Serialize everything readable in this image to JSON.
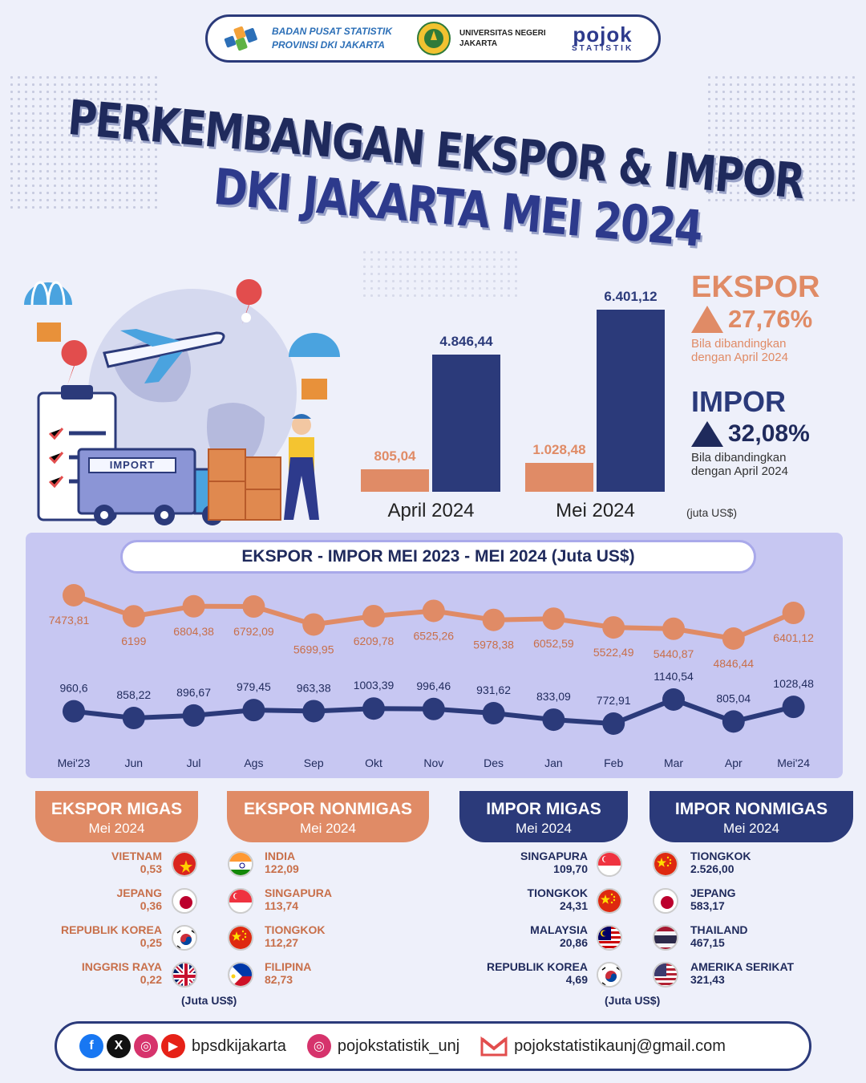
{
  "header": {
    "bps_line1": "BADAN PUSAT STATISTIK",
    "bps_line2": "PROVINSI DKI JAKARTA",
    "unj_line1": "UNIVERSITAS NEGERI",
    "unj_line2": "JAKARTA",
    "pojok_word": "pojok",
    "pojok_sub": "STATISTIK"
  },
  "title": {
    "line1": "PERKEMBANGAN EKSPOR & IMPOR",
    "line2": "DKI JAKARTA MEI 2024"
  },
  "illustration": {
    "truck_label": "IMPORT"
  },
  "colors": {
    "ekspor": "#e08b66",
    "impor": "#2b3a7a",
    "panel": "#c7c7f2"
  },
  "chart_data": [
    {
      "type": "bar",
      "categories": [
        "April 2024",
        "Mei 2024"
      ],
      "series": [
        {
          "values": [
            805.04,
            1028.48
          ]
        },
        {
          "values": [
            4846.44,
            6401.12
          ]
        }
      ],
      "value_labels": [
        [
          "805,04",
          "1.028,48"
        ],
        [
          "4.846,44",
          "6.401,12"
        ]
      ],
      "unit_label": "(juta US$)",
      "ylim": [
        0,
        6500
      ]
    },
    {
      "type": "line",
      "title": "EKSPOR - IMPOR MEI 2023 - MEI 2024 (Juta US$)",
      "categories": [
        "Mei'23",
        "Jun",
        "Jul",
        "Ags",
        "Sep",
        "Okt",
        "Nov",
        "Des",
        "Jan",
        "Feb",
        "Mar",
        "Apr",
        "Mei'24"
      ],
      "series": [
        {
          "values": [
            7473.81,
            6199,
            6804.38,
            6792.09,
            5699.95,
            6209.78,
            6525.26,
            5978.38,
            6052.59,
            5522.49,
            5440.87,
            4846.44,
            6401.12
          ],
          "labels": [
            "7473,81",
            "6199",
            "6804,38",
            "6792,09",
            "5699,95",
            "6209,78",
            "6525,26",
            "5978,38",
            "6052,59",
            "5522,49",
            "5440,87",
            "4846,44",
            "6401,12"
          ]
        },
        {
          "values": [
            960.6,
            858.22,
            896.67,
            979.45,
            963.38,
            1003.39,
            996.46,
            931.62,
            833.09,
            772.91,
            1140.54,
            805.04,
            1028.48
          ],
          "labels": [
            "960,6",
            "858,22",
            "896,67",
            "979,45",
            "963,38",
            "1003,39",
            "996,46",
            "931,62",
            "833,09",
            "772,91",
            "1140,54",
            "805,04",
            "1028,48"
          ]
        }
      ]
    }
  ],
  "summary": {
    "ekspor_label": "EKSPOR",
    "ekspor_pct": "27,76%",
    "ekspor_note1": "Bila dibandingkan",
    "ekspor_note2": "dengan April 2024",
    "impor_label": "IMPOR",
    "impor_pct": "32,08%",
    "impor_note1": "Bila dibandingkan",
    "impor_note2": "dengan April 2024"
  },
  "categories": {
    "ekspor_migas": {
      "title": "EKSPOR MIGAS",
      "sub": "Mei 2024",
      "items": [
        {
          "name": "VIETNAM",
          "value": "0,53",
          "flag": "vietnam"
        },
        {
          "name": "JEPANG",
          "value": "0,36",
          "flag": "japan"
        },
        {
          "name": "REPUBLIK KOREA",
          "value": "0,25",
          "flag": "korea"
        },
        {
          "name": "INGGRIS RAYA",
          "value": "0,22",
          "flag": "uk"
        }
      ]
    },
    "ekspor_nonmigas": {
      "title": "EKSPOR NONMIGAS",
      "sub": "Mei 2024",
      "items": [
        {
          "name": "INDIA",
          "value": "122,09",
          "flag": "india"
        },
        {
          "name": "SINGAPURA",
          "value": "113,74",
          "flag": "singapore"
        },
        {
          "name": "TIONGKOK",
          "value": "112,27",
          "flag": "china"
        },
        {
          "name": "FILIPINA",
          "value": "82,73",
          "flag": "philippines"
        }
      ]
    },
    "impor_migas": {
      "title": "IMPOR MIGAS",
      "sub": "Mei 2024",
      "items": [
        {
          "name": "SINGAPURA",
          "value": "109,70",
          "flag": "singapore"
        },
        {
          "name": "TIONGKOK",
          "value": "24,31",
          "flag": "china"
        },
        {
          "name": "MALAYSIA",
          "value": "20,86",
          "flag": "malaysia"
        },
        {
          "name": "REPUBLIK KOREA",
          "value": "4,69",
          "flag": "korea"
        }
      ]
    },
    "impor_nonmigas": {
      "title": "IMPOR NONMIGAS",
      "sub": "Mei 2024",
      "items": [
        {
          "name": "TIONGKOK",
          "value": "2.526,00",
          "flag": "china"
        },
        {
          "name": "JEPANG",
          "value": "583,17",
          "flag": "japan"
        },
        {
          "name": "THAILAND",
          "value": "467,15",
          "flag": "thailand"
        },
        {
          "name": "AMERIKA SERIKAT",
          "value": "321,43",
          "flag": "usa"
        }
      ]
    },
    "unit_left": "(Juta US$)",
    "unit_right": "(Juta US$)"
  },
  "footer": {
    "handle1": "bpsdkijakarta",
    "handle2": "pojokstatistik_unj",
    "email": "pojokstatistikaunj@gmail.com",
    "icons": [
      "facebook-icon",
      "x-icon",
      "instagram-icon",
      "youtube-icon",
      "gmail-icon"
    ]
  }
}
